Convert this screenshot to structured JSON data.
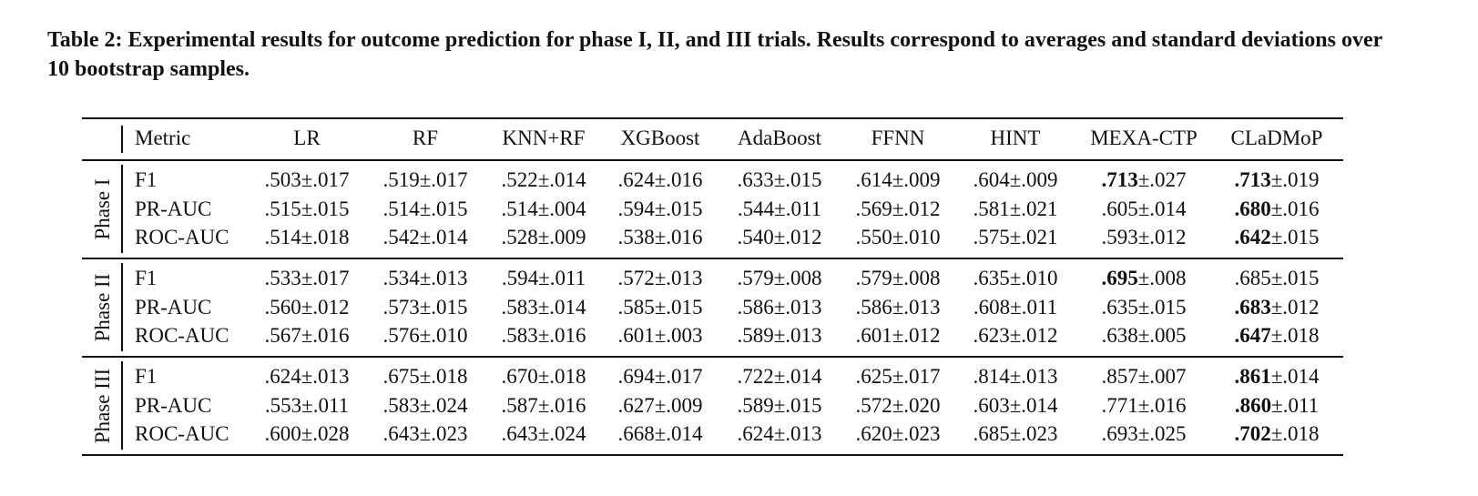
{
  "caption": "Table 2: Experimental results for outcome prediction for phase I, II, and III trials. Results correspond to averages and standard deviations over 10 bootstrap samples.",
  "table": {
    "header": [
      "Metric",
      "LR",
      "RF",
      "KNN+RF",
      "XGBoost",
      "AdaBoost",
      "FFNN",
      "HINT",
      "MEXA-CTP",
      "CLaDMoP"
    ],
    "groups": [
      {
        "name": "Phase I",
        "rows": [
          {
            "metric": "F1",
            "cells": [
              {
                "mean": ".503",
                "sd": "±.017"
              },
              {
                "mean": ".519",
                "sd": "±.017"
              },
              {
                "mean": ".522",
                "sd": "±.014"
              },
              {
                "mean": ".624",
                "sd": "±.016"
              },
              {
                "mean": ".633",
                "sd": "±.015"
              },
              {
                "mean": ".614",
                "sd": "±.009"
              },
              {
                "mean": ".604",
                "sd": "±.009"
              },
              {
                "mean": ".713",
                "sd": "±.027",
                "bold": true
              },
              {
                "mean": ".713",
                "sd": "±.019",
                "bold": true
              }
            ]
          },
          {
            "metric": "PR-AUC",
            "cells": [
              {
                "mean": ".515",
                "sd": "±.015"
              },
              {
                "mean": ".514",
                "sd": "±.015"
              },
              {
                "mean": ".514",
                "sd": "±.004"
              },
              {
                "mean": ".594",
                "sd": "±.015"
              },
              {
                "mean": ".544",
                "sd": "±.011"
              },
              {
                "mean": ".569",
                "sd": "±.012"
              },
              {
                "mean": ".581",
                "sd": "±.021"
              },
              {
                "mean": ".605",
                "sd": "±.014"
              },
              {
                "mean": ".680",
                "sd": "±.016",
                "bold": true
              }
            ]
          },
          {
            "metric": "ROC-AUC",
            "cells": [
              {
                "mean": ".514",
                "sd": "±.018"
              },
              {
                "mean": ".542",
                "sd": "±.014"
              },
              {
                "mean": ".528",
                "sd": "±.009"
              },
              {
                "mean": ".538",
                "sd": "±.016"
              },
              {
                "mean": ".540",
                "sd": "±.012"
              },
              {
                "mean": ".550",
                "sd": "±.010"
              },
              {
                "mean": ".575",
                "sd": "±.021"
              },
              {
                "mean": ".593",
                "sd": "±.012"
              },
              {
                "mean": ".642",
                "sd": "±.015",
                "bold": true
              }
            ]
          }
        ]
      },
      {
        "name": "Phase II",
        "rows": [
          {
            "metric": "F1",
            "cells": [
              {
                "mean": ".533",
                "sd": "±.017"
              },
              {
                "mean": ".534",
                "sd": "±.013"
              },
              {
                "mean": ".594",
                "sd": "±.011"
              },
              {
                "mean": ".572",
                "sd": "±.013"
              },
              {
                "mean": ".579",
                "sd": "±.008"
              },
              {
                "mean": ".579",
                "sd": "±.008"
              },
              {
                "mean": ".635",
                "sd": "±.010"
              },
              {
                "mean": ".695",
                "sd": "±.008",
                "bold": true
              },
              {
                "mean": ".685",
                "sd": "±.015"
              }
            ]
          },
          {
            "metric": "PR-AUC",
            "cells": [
              {
                "mean": ".560",
                "sd": "±.012"
              },
              {
                "mean": ".573",
                "sd": "±.015"
              },
              {
                "mean": ".583",
                "sd": "±.014"
              },
              {
                "mean": ".585",
                "sd": "±.015"
              },
              {
                "mean": ".586",
                "sd": "±.013"
              },
              {
                "mean": ".586",
                "sd": "±.013"
              },
              {
                "mean": ".608",
                "sd": "±.011"
              },
              {
                "mean": ".635",
                "sd": "±.015"
              },
              {
                "mean": ".683",
                "sd": "±.012",
                "bold": true
              }
            ]
          },
          {
            "metric": "ROC-AUC",
            "cells": [
              {
                "mean": ".567",
                "sd": "±.016"
              },
              {
                "mean": ".576",
                "sd": "±.010"
              },
              {
                "mean": ".583",
                "sd": "±.016"
              },
              {
                "mean": ".601",
                "sd": "±.003"
              },
              {
                "mean": ".589",
                "sd": "±.013"
              },
              {
                "mean": ".601",
                "sd": "±.012"
              },
              {
                "mean": ".623",
                "sd": "±.012"
              },
              {
                "mean": ".638",
                "sd": "±.005"
              },
              {
                "mean": ".647",
                "sd": "±.018",
                "bold": true
              }
            ]
          }
        ]
      },
      {
        "name": "Phase III",
        "rows": [
          {
            "metric": "F1",
            "cells": [
              {
                "mean": ".624",
                "sd": "±.013"
              },
              {
                "mean": ".675",
                "sd": "±.018"
              },
              {
                "mean": ".670",
                "sd": "±.018"
              },
              {
                "mean": ".694",
                "sd": "±.017"
              },
              {
                "mean": ".722",
                "sd": "±.014"
              },
              {
                "mean": ".625",
                "sd": "±.017"
              },
              {
                "mean": ".814",
                "sd": "±.013"
              },
              {
                "mean": ".857",
                "sd": "±.007"
              },
              {
                "mean": ".861",
                "sd": "±.014",
                "bold": true
              }
            ]
          },
          {
            "metric": "PR-AUC",
            "cells": [
              {
                "mean": ".553",
                "sd": "±.011"
              },
              {
                "mean": ".583",
                "sd": "±.024"
              },
              {
                "mean": ".587",
                "sd": "±.016"
              },
              {
                "mean": ".627",
                "sd": "±.009"
              },
              {
                "mean": ".589",
                "sd": "±.015"
              },
              {
                "mean": ".572",
                "sd": "±.020"
              },
              {
                "mean": ".603",
                "sd": "±.014"
              },
              {
                "mean": ".771",
                "sd": "±.016"
              },
              {
                "mean": ".860",
                "sd": "±.011",
                "bold": true
              }
            ]
          },
          {
            "metric": "ROC-AUC",
            "cells": [
              {
                "mean": ".600",
                "sd": "±.028"
              },
              {
                "mean": ".643",
                "sd": "±.023"
              },
              {
                "mean": ".643",
                "sd": "±.024"
              },
              {
                "mean": ".668",
                "sd": "±.014"
              },
              {
                "mean": ".624",
                "sd": "±.013"
              },
              {
                "mean": ".620",
                "sd": "±.023"
              },
              {
                "mean": ".685",
                "sd": "±.023"
              },
              {
                "mean": ".693",
                "sd": "±.025"
              },
              {
                "mean": ".702",
                "sd": "±.018",
                "bold": true
              }
            ]
          }
        ]
      }
    ]
  }
}
